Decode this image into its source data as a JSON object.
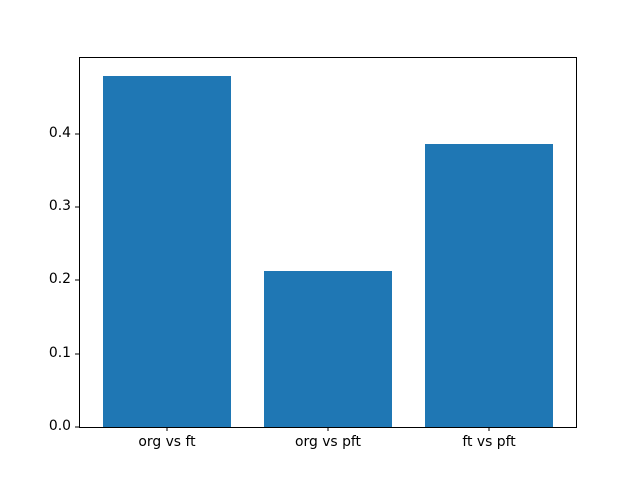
{
  "figure": {
    "background": "#ffffff"
  },
  "chart_data": {
    "type": "bar",
    "categories": [
      "org vs ft",
      "org vs pft",
      "ft vs pft"
    ],
    "values": [
      0.479,
      0.213,
      0.386
    ],
    "yticks": [
      0.0,
      0.1,
      0.2,
      0.3,
      0.4
    ],
    "ytick_labels": [
      "0.0",
      "0.1",
      "0.2",
      "0.3",
      "0.4"
    ],
    "ylim": [
      0,
      0.503
    ],
    "xlim": [
      -0.54,
      2.54
    ],
    "bar_width": 0.8,
    "bar_color": "#1f77b4",
    "axis_color": "#000000",
    "tick_label_color": "#000000",
    "grid": false,
    "legend": "none"
  }
}
